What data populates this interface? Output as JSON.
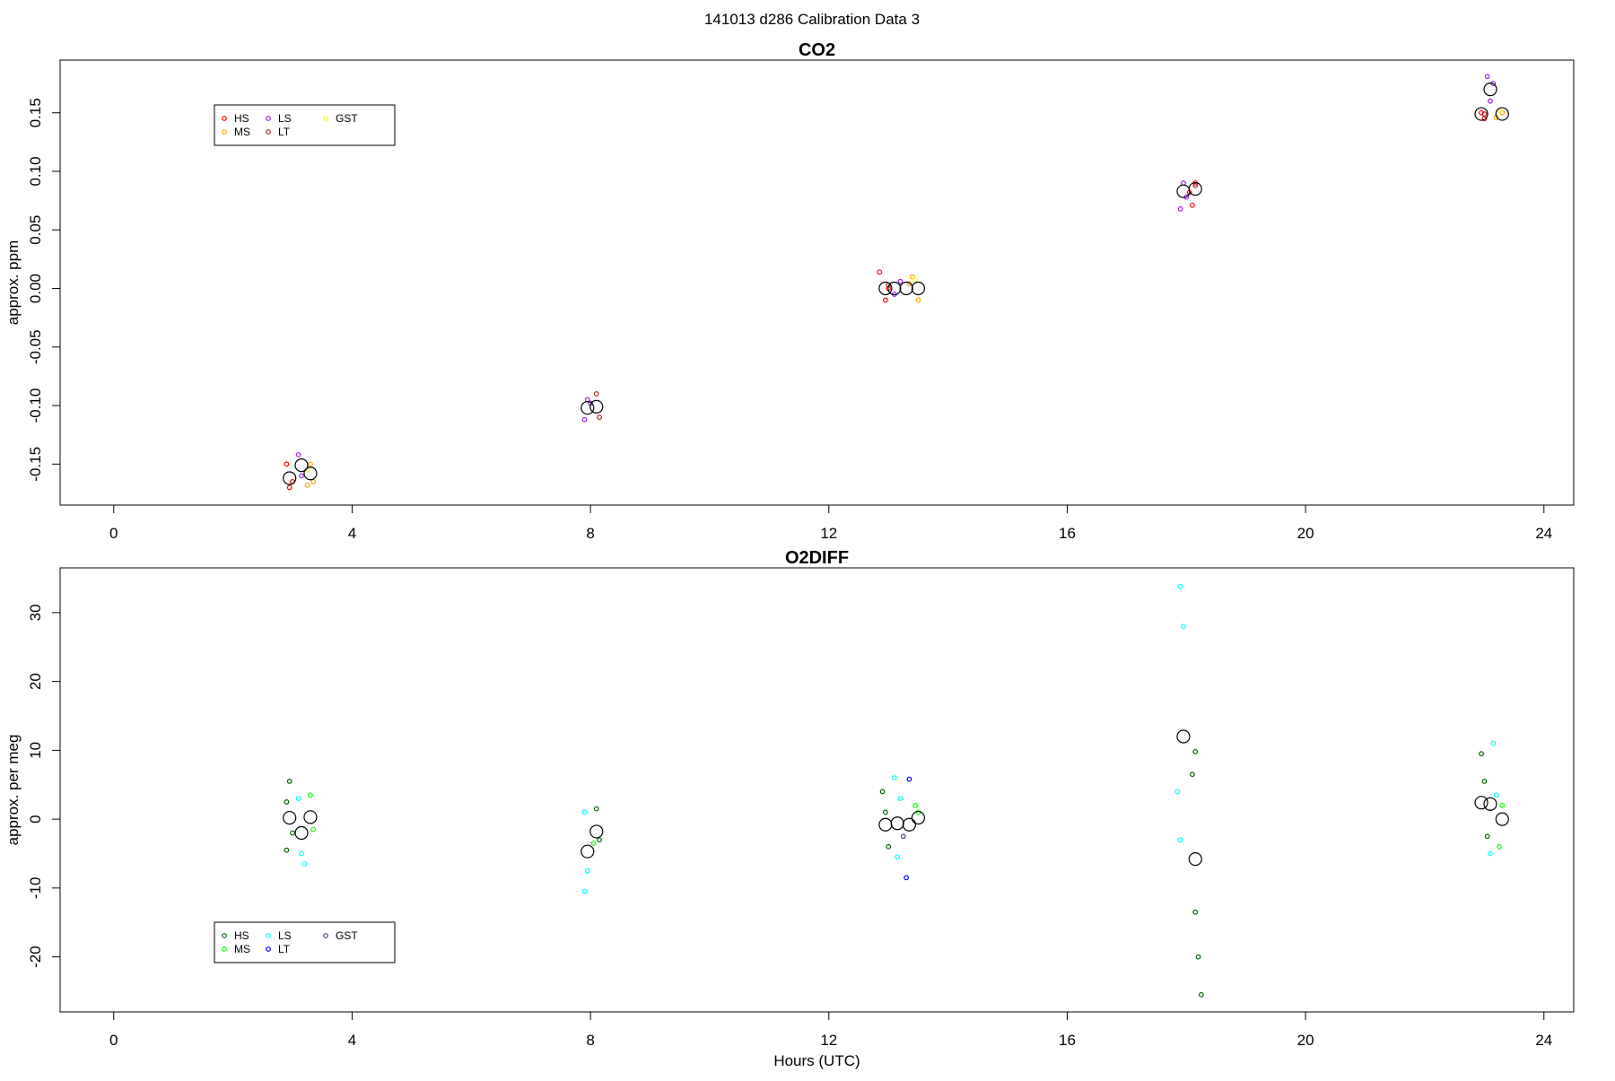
{
  "figure": {
    "title": "141013   d286   Calibration Data 3"
  },
  "chart_data": [
    {
      "type": "scatter",
      "title": "CO2",
      "xlabel": "",
      "ylabel": "approx. ppm",
      "xlim": [
        -0.9,
        24.5
      ],
      "ylim": [
        -0.185,
        0.195
      ],
      "xticks": [
        0,
        4,
        8,
        12,
        16,
        20,
        24
      ],
      "yticks": [
        -0.15,
        -0.1,
        -0.05,
        0.0,
        0.05,
        0.1,
        0.15
      ],
      "ytick_labels": [
        "-0.15",
        "-0.10",
        "-0.05",
        "0.00",
        "0.05",
        "0.10",
        "0.15"
      ],
      "legend": {
        "position": "top-left",
        "entries": [
          {
            "name": "HS",
            "color": "#ff0000"
          },
          {
            "name": "MS",
            "color": "#ffa500"
          },
          {
            "name": "LS",
            "color": "#a020f0"
          },
          {
            "name": "LT",
            "color": "#b22222"
          },
          {
            "name": "GST",
            "color": "#ffff00"
          }
        ]
      },
      "series": [
        {
          "name": "HS",
          "color": "#ff0000",
          "points": [
            [
              2.9,
              -0.15
            ],
            [
              3.0,
              -0.165
            ],
            [
              2.95,
              -0.17
            ],
            [
              12.85,
              0.014
            ],
            [
              12.95,
              -0.01
            ],
            [
              13.0,
              0.0
            ],
            [
              18.05,
              0.082
            ],
            [
              18.1,
              0.071
            ],
            [
              18.15,
              0.09
            ],
            [
              22.95,
              0.15
            ],
            [
              23.0,
              0.145
            ]
          ]
        },
        {
          "name": "MS",
          "color": "#ffa500",
          "points": [
            [
              3.3,
              -0.15
            ],
            [
              3.25,
              -0.168
            ],
            [
              3.35,
              -0.165
            ],
            [
              13.4,
              0.01
            ],
            [
              13.5,
              -0.01
            ],
            [
              13.35,
              0.004
            ],
            [
              23.2,
              0.146
            ],
            [
              23.3,
              0.15
            ]
          ]
        },
        {
          "name": "LS",
          "color": "#a020f0",
          "points": [
            [
              3.1,
              -0.142
            ],
            [
              3.15,
              -0.16
            ],
            [
              7.9,
              -0.112
            ],
            [
              7.95,
              -0.095
            ],
            [
              8.0,
              -0.098
            ],
            [
              13.1,
              -0.005
            ],
            [
              13.2,
              0.006
            ],
            [
              17.9,
              0.068
            ],
            [
              17.95,
              0.09
            ],
            [
              18.0,
              0.078
            ],
            [
              23.05,
              0.181
            ],
            [
              23.1,
              0.16
            ],
            [
              23.15,
              0.175
            ]
          ]
        },
        {
          "name": "LT",
          "color": "#b22222",
          "points": [
            [
              8.1,
              -0.09
            ],
            [
              8.15,
              -0.11
            ],
            [
              13.0,
              0.003
            ],
            [
              18.15,
              0.088
            ],
            [
              23.0,
              0.149
            ]
          ]
        },
        {
          "name": "GST",
          "color": "#ffff00",
          "points": [
            [
              3.25,
              -0.155
            ],
            [
              13.45,
              0.008
            ],
            [
              23.25,
              0.152
            ]
          ]
        },
        {
          "name": "mean",
          "color": "#000000",
          "mean": true,
          "points": [
            [
              2.95,
              -0.162
            ],
            [
              3.15,
              -0.151
            ],
            [
              3.3,
              -0.158
            ],
            [
              7.95,
              -0.102
            ],
            [
              8.1,
              -0.101
            ],
            [
              12.95,
              0.0
            ],
            [
              13.1,
              0.0
            ],
            [
              13.3,
              0.0
            ],
            [
              13.5,
              0.0
            ],
            [
              17.95,
              0.083
            ],
            [
              18.15,
              0.085
            ],
            [
              22.95,
              0.149
            ],
            [
              23.1,
              0.17
            ],
            [
              23.3,
              0.149
            ]
          ]
        }
      ]
    },
    {
      "type": "scatter",
      "title": "O2DIFF",
      "xlabel": "Hours (UTC)",
      "ylabel": "approx. per meg",
      "xlim": [
        -0.9,
        24.5
      ],
      "ylim": [
        -28.0,
        36.5
      ],
      "xticks": [
        0,
        4,
        8,
        12,
        16,
        20,
        24
      ],
      "yticks": [
        -20,
        -10,
        0,
        10,
        20,
        30
      ],
      "ytick_labels": [
        "-20",
        "-10",
        "0",
        "10",
        "20",
        "30"
      ],
      "legend": {
        "position": "bottom-left",
        "entries": [
          {
            "name": "HS",
            "color": "#006400"
          },
          {
            "name": "MS",
            "color": "#00ff00"
          },
          {
            "name": "LS",
            "color": "#00ffff"
          },
          {
            "name": "LT",
            "color": "#0000ff"
          },
          {
            "name": "GST",
            "color": "#483d8b"
          }
        ]
      },
      "series": [
        {
          "name": "HS",
          "color": "#006400",
          "points": [
            [
              2.95,
              5.5
            ],
            [
              2.9,
              2.5
            ],
            [
              3.0,
              -2.0
            ],
            [
              2.9,
              -4.5
            ],
            [
              8.1,
              1.5
            ],
            [
              8.15,
              -3.0
            ],
            [
              12.9,
              4.0
            ],
            [
              13.0,
              -4.0
            ],
            [
              12.95,
              1.0
            ],
            [
              18.1,
              6.5
            ],
            [
              18.15,
              -13.5
            ],
            [
              18.2,
              -20.0
            ],
            [
              18.25,
              -25.5
            ],
            [
              18.15,
              9.8
            ],
            [
              22.95,
              9.5
            ],
            [
              23.0,
              5.5
            ],
            [
              23.05,
              -2.5
            ]
          ]
        },
        {
          "name": "MS",
          "color": "#00ff00",
          "points": [
            [
              3.3,
              3.5
            ],
            [
              3.35,
              -1.5
            ],
            [
              8.05,
              -3.5
            ],
            [
              13.45,
              2.0
            ],
            [
              13.5,
              1.0
            ],
            [
              23.25,
              -4.0
            ],
            [
              23.3,
              2.0
            ]
          ]
        },
        {
          "name": "LS",
          "color": "#00ffff",
          "points": [
            [
              3.1,
              3.0
            ],
            [
              3.15,
              -5.0
            ],
            [
              3.2,
              -6.5
            ],
            [
              7.9,
              1.0
            ],
            [
              7.95,
              -7.5
            ],
            [
              7.9,
              -10.5
            ],
            [
              13.1,
              6.0
            ],
            [
              13.15,
              -5.5
            ],
            [
              13.2,
              3.0
            ],
            [
              17.9,
              33.8
            ],
            [
              17.95,
              28.0
            ],
            [
              17.85,
              4.0
            ],
            [
              17.9,
              -3.0
            ],
            [
              23.15,
              11.0
            ],
            [
              23.1,
              -5.0
            ],
            [
              23.2,
              3.5
            ]
          ]
        },
        {
          "name": "LT",
          "color": "#0000ff",
          "points": [
            [
              13.3,
              -8.5
            ],
            [
              13.35,
              5.8
            ]
          ]
        },
        {
          "name": "GST",
          "color": "#483d8b",
          "points": [
            [
              13.25,
              -2.5
            ]
          ]
        },
        {
          "name": "mean",
          "color": "#000000",
          "mean": true,
          "points": [
            [
              2.95,
              0.2
            ],
            [
              3.15,
              -2.0
            ],
            [
              3.3,
              0.3
            ],
            [
              7.95,
              -4.7
            ],
            [
              8.1,
              -1.8
            ],
            [
              12.95,
              -0.8
            ],
            [
              13.15,
              -0.6
            ],
            [
              13.35,
              -0.8
            ],
            [
              13.5,
              0.2
            ],
            [
              17.95,
              12.0
            ],
            [
              18.15,
              -5.8
            ],
            [
              22.95,
              2.4
            ],
            [
              23.1,
              2.2
            ],
            [
              23.3,
              0.0
            ]
          ]
        }
      ]
    }
  ]
}
